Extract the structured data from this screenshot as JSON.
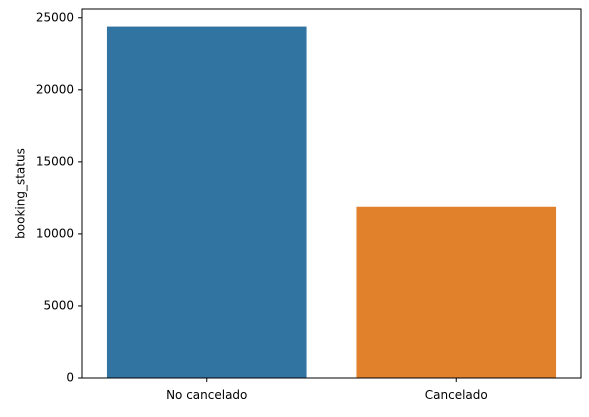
{
  "chart_data": {
    "type": "bar",
    "title": "",
    "xlabel": "",
    "ylabel": "booking_status",
    "categories": [
      "No cancelado",
      "Cancelado"
    ],
    "values": [
      24390,
      11885
    ],
    "ylim": [
      0,
      25609
    ],
    "yticks": [
      0,
      5000,
      10000,
      15000,
      20000,
      25000
    ],
    "grid": false,
    "colors": [
      "#3274a1",
      "#e1812c"
    ]
  }
}
